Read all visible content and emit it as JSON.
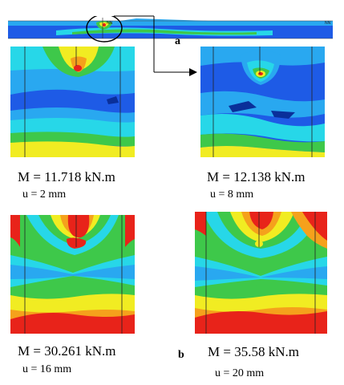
{
  "figure": {
    "panel_a_label": "a",
    "panel_b_label": "b",
    "strip_node_labels": [
      "NN",
      "NN"
    ],
    "cases": [
      {
        "moment": "M = 11.718 kN.m",
        "displacement": "u = 2 mm"
      },
      {
        "moment": "M = 12.138 kN.m",
        "displacement": "u = 8 mm"
      },
      {
        "moment": "M = 30.261 kN.m",
        "displacement": "u = 16 mm"
      },
      {
        "moment": "M = 35.58 kN.m",
        "displacement": "u = 20 mm"
      }
    ],
    "colors": {
      "blue": "#1e5be6",
      "light_blue": "#29a8f0",
      "cyan": "#27d7e8",
      "green": "#3ec84a",
      "yellow": "#f1ec22",
      "orange": "#f5a11c",
      "red": "#e8231a"
    }
  }
}
